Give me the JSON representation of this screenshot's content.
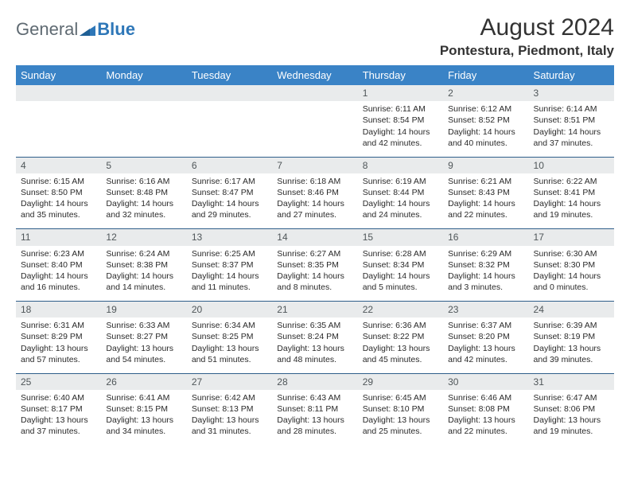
{
  "brand": {
    "part1": "General",
    "part2": "Blue"
  },
  "title": "August 2024",
  "location": "Pontestura, Piedmont, Italy",
  "colors": {
    "header_bg": "#3a83c6",
    "header_text": "#ffffff",
    "daynum_bg": "#e9ebec",
    "daynum_text": "#4f5659",
    "row_separator": "#2f5e8a",
    "logo_gray": "#5f6a72",
    "logo_blue": "#2e77b8"
  },
  "day_headers": [
    "Sunday",
    "Monday",
    "Tuesday",
    "Wednesday",
    "Thursday",
    "Friday",
    "Saturday"
  ],
  "weeks": [
    [
      {
        "num": "",
        "lines": []
      },
      {
        "num": "",
        "lines": []
      },
      {
        "num": "",
        "lines": []
      },
      {
        "num": "",
        "lines": []
      },
      {
        "num": "1",
        "lines": [
          "Sunrise: 6:11 AM",
          "Sunset: 8:54 PM",
          "Daylight: 14 hours and 42 minutes."
        ]
      },
      {
        "num": "2",
        "lines": [
          "Sunrise: 6:12 AM",
          "Sunset: 8:52 PM",
          "Daylight: 14 hours and 40 minutes."
        ]
      },
      {
        "num": "3",
        "lines": [
          "Sunrise: 6:14 AM",
          "Sunset: 8:51 PM",
          "Daylight: 14 hours and 37 minutes."
        ]
      }
    ],
    [
      {
        "num": "4",
        "lines": [
          "Sunrise: 6:15 AM",
          "Sunset: 8:50 PM",
          "Daylight: 14 hours and 35 minutes."
        ]
      },
      {
        "num": "5",
        "lines": [
          "Sunrise: 6:16 AM",
          "Sunset: 8:48 PM",
          "Daylight: 14 hours and 32 minutes."
        ]
      },
      {
        "num": "6",
        "lines": [
          "Sunrise: 6:17 AM",
          "Sunset: 8:47 PM",
          "Daylight: 14 hours and 29 minutes."
        ]
      },
      {
        "num": "7",
        "lines": [
          "Sunrise: 6:18 AM",
          "Sunset: 8:46 PM",
          "Daylight: 14 hours and 27 minutes."
        ]
      },
      {
        "num": "8",
        "lines": [
          "Sunrise: 6:19 AM",
          "Sunset: 8:44 PM",
          "Daylight: 14 hours and 24 minutes."
        ]
      },
      {
        "num": "9",
        "lines": [
          "Sunrise: 6:21 AM",
          "Sunset: 8:43 PM",
          "Daylight: 14 hours and 22 minutes."
        ]
      },
      {
        "num": "10",
        "lines": [
          "Sunrise: 6:22 AM",
          "Sunset: 8:41 PM",
          "Daylight: 14 hours and 19 minutes."
        ]
      }
    ],
    [
      {
        "num": "11",
        "lines": [
          "Sunrise: 6:23 AM",
          "Sunset: 8:40 PM",
          "Daylight: 14 hours and 16 minutes."
        ]
      },
      {
        "num": "12",
        "lines": [
          "Sunrise: 6:24 AM",
          "Sunset: 8:38 PM",
          "Daylight: 14 hours and 14 minutes."
        ]
      },
      {
        "num": "13",
        "lines": [
          "Sunrise: 6:25 AM",
          "Sunset: 8:37 PM",
          "Daylight: 14 hours and 11 minutes."
        ]
      },
      {
        "num": "14",
        "lines": [
          "Sunrise: 6:27 AM",
          "Sunset: 8:35 PM",
          "Daylight: 14 hours and 8 minutes."
        ]
      },
      {
        "num": "15",
        "lines": [
          "Sunrise: 6:28 AM",
          "Sunset: 8:34 PM",
          "Daylight: 14 hours and 5 minutes."
        ]
      },
      {
        "num": "16",
        "lines": [
          "Sunrise: 6:29 AM",
          "Sunset: 8:32 PM",
          "Daylight: 14 hours and 3 minutes."
        ]
      },
      {
        "num": "17",
        "lines": [
          "Sunrise: 6:30 AM",
          "Sunset: 8:30 PM",
          "Daylight: 14 hours and 0 minutes."
        ]
      }
    ],
    [
      {
        "num": "18",
        "lines": [
          "Sunrise: 6:31 AM",
          "Sunset: 8:29 PM",
          "Daylight: 13 hours and 57 minutes."
        ]
      },
      {
        "num": "19",
        "lines": [
          "Sunrise: 6:33 AM",
          "Sunset: 8:27 PM",
          "Daylight: 13 hours and 54 minutes."
        ]
      },
      {
        "num": "20",
        "lines": [
          "Sunrise: 6:34 AM",
          "Sunset: 8:25 PM",
          "Daylight: 13 hours and 51 minutes."
        ]
      },
      {
        "num": "21",
        "lines": [
          "Sunrise: 6:35 AM",
          "Sunset: 8:24 PM",
          "Daylight: 13 hours and 48 minutes."
        ]
      },
      {
        "num": "22",
        "lines": [
          "Sunrise: 6:36 AM",
          "Sunset: 8:22 PM",
          "Daylight: 13 hours and 45 minutes."
        ]
      },
      {
        "num": "23",
        "lines": [
          "Sunrise: 6:37 AM",
          "Sunset: 8:20 PM",
          "Daylight: 13 hours and 42 minutes."
        ]
      },
      {
        "num": "24",
        "lines": [
          "Sunrise: 6:39 AM",
          "Sunset: 8:19 PM",
          "Daylight: 13 hours and 39 minutes."
        ]
      }
    ],
    [
      {
        "num": "25",
        "lines": [
          "Sunrise: 6:40 AM",
          "Sunset: 8:17 PM",
          "Daylight: 13 hours and 37 minutes."
        ]
      },
      {
        "num": "26",
        "lines": [
          "Sunrise: 6:41 AM",
          "Sunset: 8:15 PM",
          "Daylight: 13 hours and 34 minutes."
        ]
      },
      {
        "num": "27",
        "lines": [
          "Sunrise: 6:42 AM",
          "Sunset: 8:13 PM",
          "Daylight: 13 hours and 31 minutes."
        ]
      },
      {
        "num": "28",
        "lines": [
          "Sunrise: 6:43 AM",
          "Sunset: 8:11 PM",
          "Daylight: 13 hours and 28 minutes."
        ]
      },
      {
        "num": "29",
        "lines": [
          "Sunrise: 6:45 AM",
          "Sunset: 8:10 PM",
          "Daylight: 13 hours and 25 minutes."
        ]
      },
      {
        "num": "30",
        "lines": [
          "Sunrise: 6:46 AM",
          "Sunset: 8:08 PM",
          "Daylight: 13 hours and 22 minutes."
        ]
      },
      {
        "num": "31",
        "lines": [
          "Sunrise: 6:47 AM",
          "Sunset: 8:06 PM",
          "Daylight: 13 hours and 19 minutes."
        ]
      }
    ]
  ]
}
